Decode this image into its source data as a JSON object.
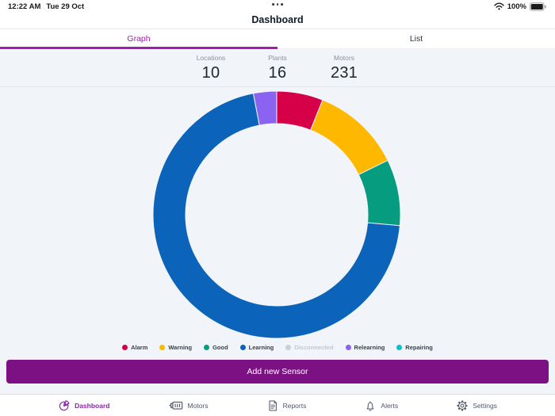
{
  "status_bar": {
    "time": "12:22 AM",
    "date": "Tue 29 Oct",
    "battery_percent": "100%"
  },
  "header": {
    "title": "Dashboard"
  },
  "tabs": {
    "items": [
      {
        "label": "Graph",
        "active": true
      },
      {
        "label": "List",
        "active": false
      }
    ]
  },
  "stats": [
    {
      "label": "Locations",
      "value": "10"
    },
    {
      "label": "Plants",
      "value": "16"
    },
    {
      "label": "Motors",
      "value": "231"
    }
  ],
  "chart_data": {
    "type": "pie",
    "subtype": "donut",
    "title": "",
    "categories": [
      "Alarm",
      "Warning",
      "Good",
      "Learning",
      "Disconnected",
      "Relearning",
      "Repairing"
    ],
    "values": [
      14,
      27,
      20,
      163,
      0,
      7,
      0
    ],
    "total": 231,
    "colors": [
      "#D50048",
      "#FFB800",
      "#069C7F",
      "#0B64BA",
      "#C9CFD6",
      "#8A63F1",
      "#0ABFC9"
    ],
    "disabled_categories": [
      "Disconnected"
    ],
    "disabled_color": "#C9CFD6",
    "legend_position": "bottom",
    "start_angle_deg": 0,
    "clockwise": true,
    "inner_radius_ratio": 0.74
  },
  "actions": {
    "add_sensor_label": "Add new Sensor"
  },
  "tab_bar": {
    "items": [
      {
        "label": "Dashboard",
        "icon": "pie-chart-icon",
        "active": true
      },
      {
        "label": "Motors",
        "icon": "motor-icon",
        "active": false
      },
      {
        "label": "Reports",
        "icon": "report-icon",
        "active": false
      },
      {
        "label": "Alerts",
        "icon": "bell-icon",
        "active": false
      },
      {
        "label": "Settings",
        "icon": "gear-icon",
        "active": false
      }
    ]
  },
  "colors": {
    "accent": "#A21CAF",
    "button": "#7B1182",
    "content_bg": "#F1F4F8",
    "tabbar_active": "#8E24AA"
  }
}
